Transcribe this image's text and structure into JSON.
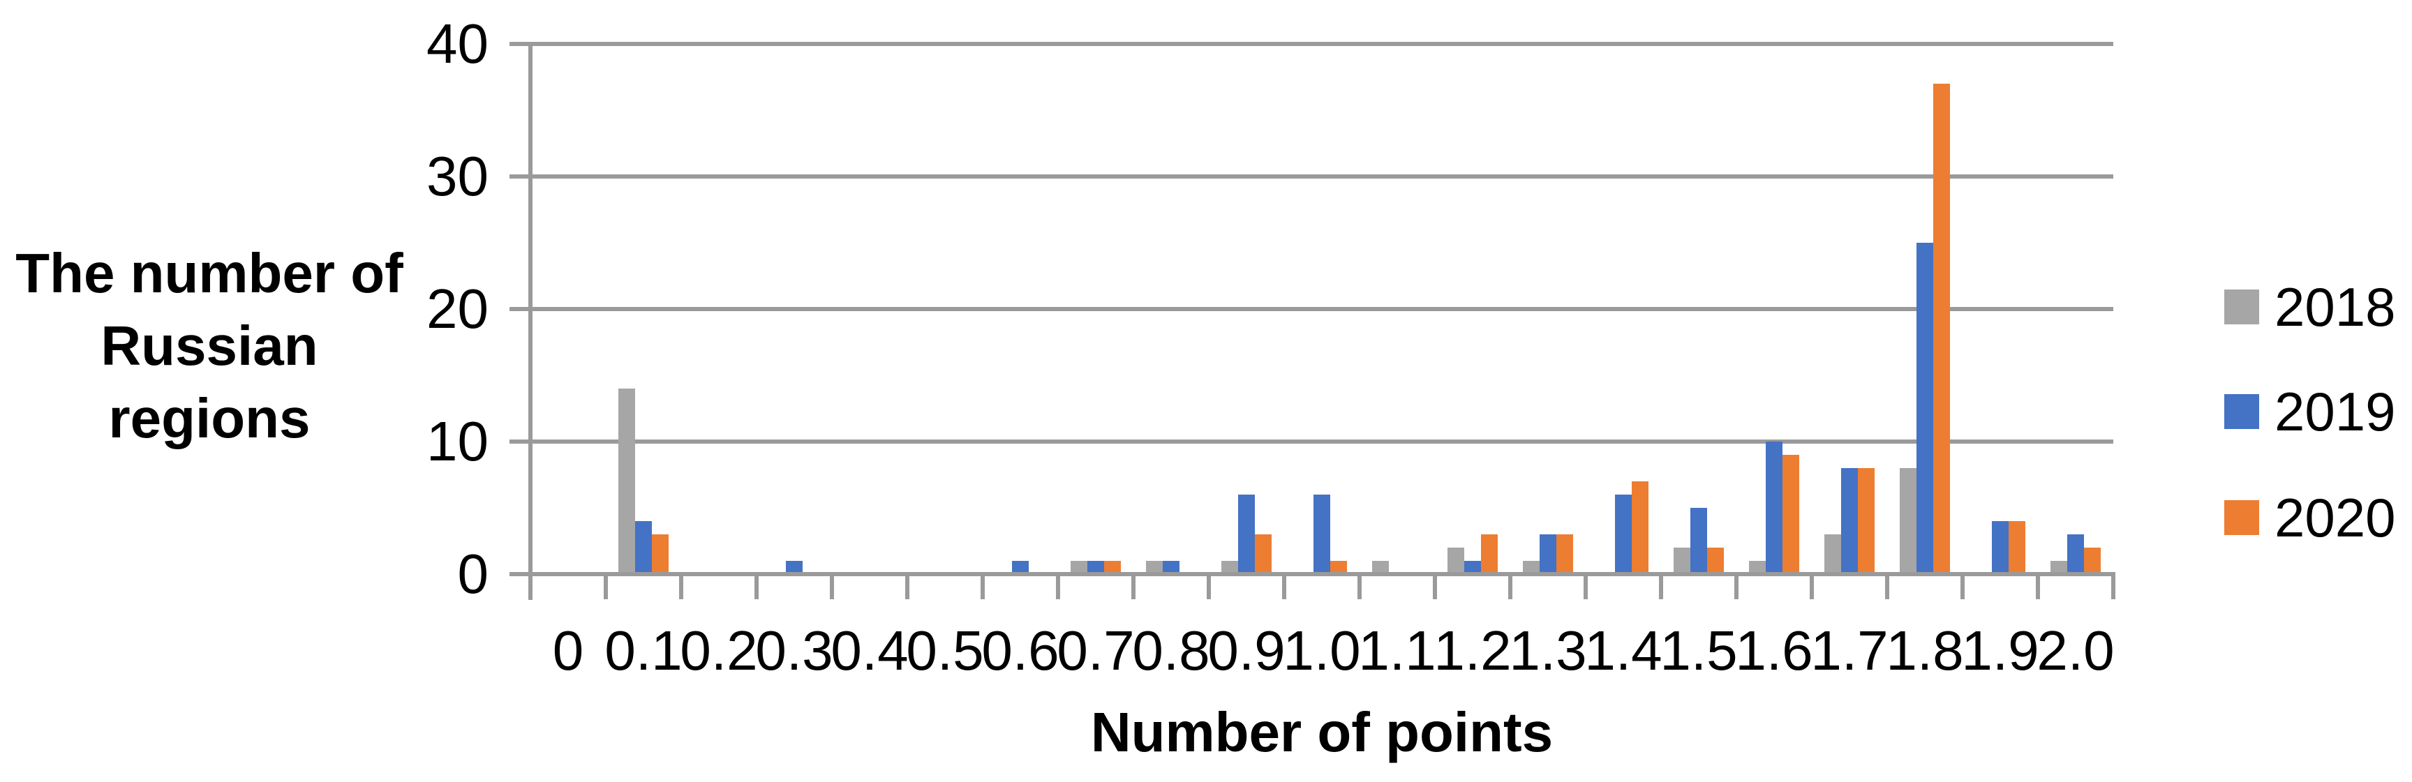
{
  "chart_data": {
    "type": "bar",
    "x_axis_title": "Number of points",
    "y_axis_title_line1": "The number of",
    "y_axis_title_line2": "Russian regions",
    "categories": [
      "0",
      "0.1",
      "0.2",
      "0.3",
      "0.4",
      "0.5",
      "0.6",
      "0.7",
      "0.8",
      "0.9",
      "1.0",
      "1.1",
      "1.2",
      "1.3",
      "1.4",
      "1.5",
      "1.6",
      "1.7",
      "1.8",
      "1.9",
      "2.0"
    ],
    "series": [
      {
        "name": "2018",
        "color": "#A6A6A6",
        "values": [
          0,
          14,
          0,
          0,
          0,
          0,
          0,
          1,
          1,
          1,
          0,
          1,
          2,
          1,
          0,
          2,
          1,
          3,
          8,
          0,
          1
        ]
      },
      {
        "name": "2019",
        "color": "#4472C4",
        "values": [
          0,
          4,
          0,
          1,
          0,
          0,
          1,
          1,
          1,
          6,
          6,
          0,
          1,
          3,
          6,
          5,
          10,
          8,
          25,
          4,
          3
        ]
      },
      {
        "name": "2020",
        "color": "#ED7D31",
        "values": [
          0,
          3,
          0,
          0,
          0,
          0,
          0,
          1,
          0,
          3,
          1,
          0,
          3,
          3,
          7,
          2,
          9,
          8,
          37,
          4,
          2
        ]
      }
    ],
    "y_ticks": [
      0,
      10,
      20,
      30,
      40
    ],
    "ylim": [
      0,
      40
    ],
    "grid": true,
    "legend_position": "right"
  }
}
